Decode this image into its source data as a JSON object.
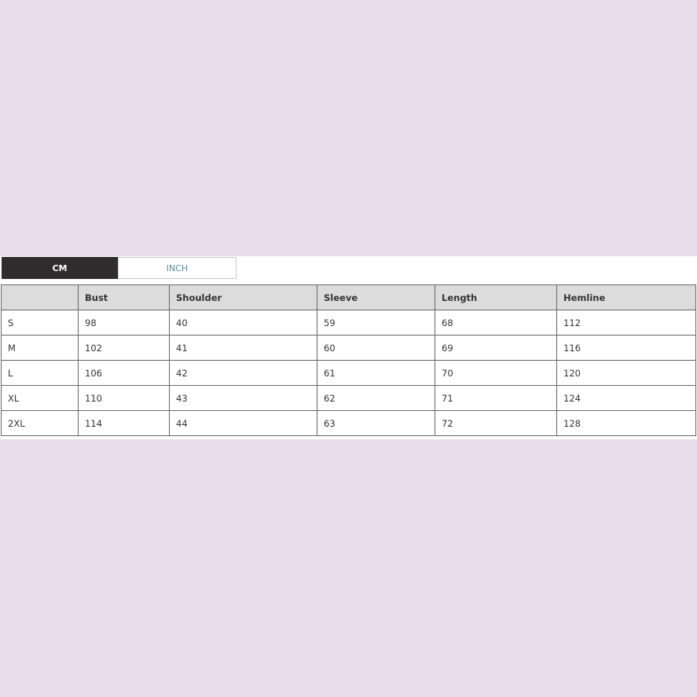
{
  "unit_tabs": [
    {
      "label": "CM",
      "active": true
    },
    {
      "label": "INCH",
      "active": false
    }
  ],
  "table": {
    "headers": [
      "",
      "Bust",
      "Shoulder",
      "Sleeve",
      "Length",
      "Hemline"
    ],
    "rows": [
      [
        "S",
        "98",
        "40",
        "59",
        "68",
        "112"
      ],
      [
        "M",
        "102",
        "41",
        "60",
        "69",
        "116"
      ],
      [
        "L",
        "106",
        "42",
        "61",
        "70",
        "120"
      ],
      [
        "XL",
        "110",
        "43",
        "62",
        "71",
        "124"
      ],
      [
        "2XL",
        "114",
        "44",
        "63",
        "72",
        "128"
      ]
    ]
  },
  "colors": {
    "background": "#e8dcea",
    "active_tab": "#2e2c2c",
    "header_bg": "#dcdcdc"
  }
}
